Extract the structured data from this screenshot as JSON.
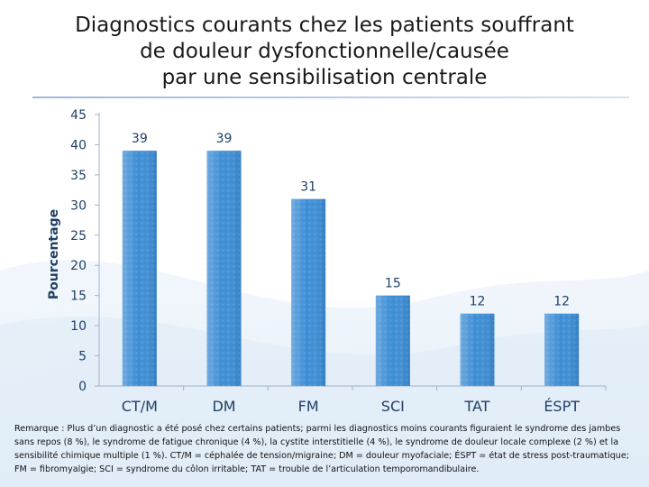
{
  "title_lines": [
    "Diagnostics courants chez les patients souffrant",
    "de douleur dysfonctionnelle/causée",
    "par une sensibilisation centrale"
  ],
  "note": "Remarque : Plus d’un diagnostic a été posé chez certains patients; parmi les diagnostics moins courants figuraient le syndrome des jambes sans repos (8 %), le syndrome de fatigue chronique (4 %), la cystite interstitielle (4 %), le syndrome de douleur locale complexe (2 %) et la sensibilité chimique multiple (1 %). CT/M = céphalée de tension/migraine; DM = douleur myofaciale; ÉSPT = état de stress post-traumatique; FM = fibromyalgie; SCI = syndrome du côlon irritable; TAT = trouble de l’articulation temporomandibulaire.",
  "colors": {
    "bar": "#3f8fd6",
    "bar_light": "#7fb8ea",
    "axis_text": "#1f3f66",
    "value_label": "#1f3f66"
  },
  "chart_data": {
    "type": "bar",
    "title": "Diagnostics courants chez les patients souffrant de douleur dysfonctionnelle/causée par une sensibilisation centrale",
    "categories": [
      "CT/M",
      "DM",
      "FM",
      "SCI",
      "TAT",
      "ÉSPT"
    ],
    "values": [
      39,
      39,
      31,
      15,
      12,
      12
    ],
    "xlabel": "",
    "ylabel": "Pourcentage",
    "ylim": [
      0,
      45
    ],
    "yticks": [
      0,
      5,
      10,
      15,
      20,
      25,
      30,
      35,
      40,
      45
    ],
    "grid": false,
    "data_labels": true
  }
}
